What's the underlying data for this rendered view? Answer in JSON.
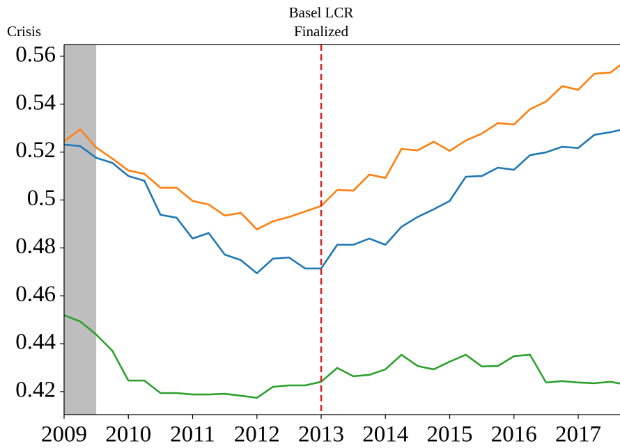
{
  "chart_data": {
    "type": "line",
    "x": [
      2009,
      2009.25,
      2009.5,
      2009.75,
      2010,
      2010.25,
      2010.5,
      2010.75,
      2011,
      2011.25,
      2011.5,
      2011.75,
      2012,
      2012.25,
      2012.5,
      2012.75,
      2013,
      2013.25,
      2013.5,
      2013.75,
      2014,
      2014.25,
      2014.5,
      2014.75,
      2015,
      2015.25,
      2015.5,
      2015.75,
      2016,
      2016.25,
      2016.5,
      2016.75,
      2017,
      2017.25,
      2017.5,
      2017.75
    ],
    "series": [
      {
        "color": "#1f77b4",
        "values": [
          0.5231,
          0.5225,
          0.5176,
          0.5155,
          0.51,
          0.508,
          0.4938,
          0.4926,
          0.4839,
          0.4862,
          0.4772,
          0.4749,
          0.4694,
          0.4755,
          0.476,
          0.4714,
          0.4714,
          0.4813,
          0.4813,
          0.4839,
          0.4813,
          0.4888,
          0.4929,
          0.4961,
          0.4996,
          0.5097,
          0.51,
          0.5135,
          0.5126,
          0.5187,
          0.5199,
          0.5222,
          0.5217,
          0.5272,
          0.5283,
          0.5298
        ]
      },
      {
        "color": "#ff7f0e",
        "values": [
          0.5245,
          0.5295,
          0.5219,
          0.5173,
          0.5123,
          0.5109,
          0.5051,
          0.5051,
          0.4996,
          0.4981,
          0.4935,
          0.4946,
          0.4877,
          0.4911,
          0.4929,
          0.4952,
          0.4975,
          0.5042,
          0.5039,
          0.5106,
          0.5092,
          0.5213,
          0.5207,
          0.5243,
          0.5205,
          0.5248,
          0.5277,
          0.5321,
          0.5315,
          0.5379,
          0.5411,
          0.5475,
          0.546,
          0.5527,
          0.5532,
          0.5582
        ]
      },
      {
        "color": "#2ca02c",
        "values": [
          0.4519,
          0.4493,
          0.4438,
          0.4371,
          0.4246,
          0.4246,
          0.4194,
          0.4194,
          0.4188,
          0.4188,
          0.4191,
          0.4183,
          0.4174,
          0.422,
          0.4226,
          0.4226,
          0.4241,
          0.4299,
          0.4264,
          0.427,
          0.4293,
          0.4354,
          0.4307,
          0.4293,
          0.4325,
          0.4354,
          0.4305,
          0.4307,
          0.4348,
          0.4354,
          0.4238,
          0.4244,
          0.4238,
          0.4235,
          0.4241,
          0.4229
        ]
      }
    ],
    "xlim": [
      2009,
      2017.65
    ],
    "xticks": [
      2009,
      2010,
      2011,
      2012,
      2013,
      2014,
      2015,
      2016,
      2017
    ],
    "ylim": [
      0.4104,
      0.5649
    ],
    "yticks": [
      0.42,
      0.44,
      0.46,
      0.48,
      0.5,
      0.52,
      0.54,
      0.56
    ],
    "shaded_span": [
      2009,
      2009.5
    ],
    "shaded_label": "Crisis",
    "shade_color": "#bebebe",
    "vline": 2013,
    "vline_color": "#d62728",
    "vline_label": [
      "Basel LCR",
      "Finalized"
    ]
  }
}
